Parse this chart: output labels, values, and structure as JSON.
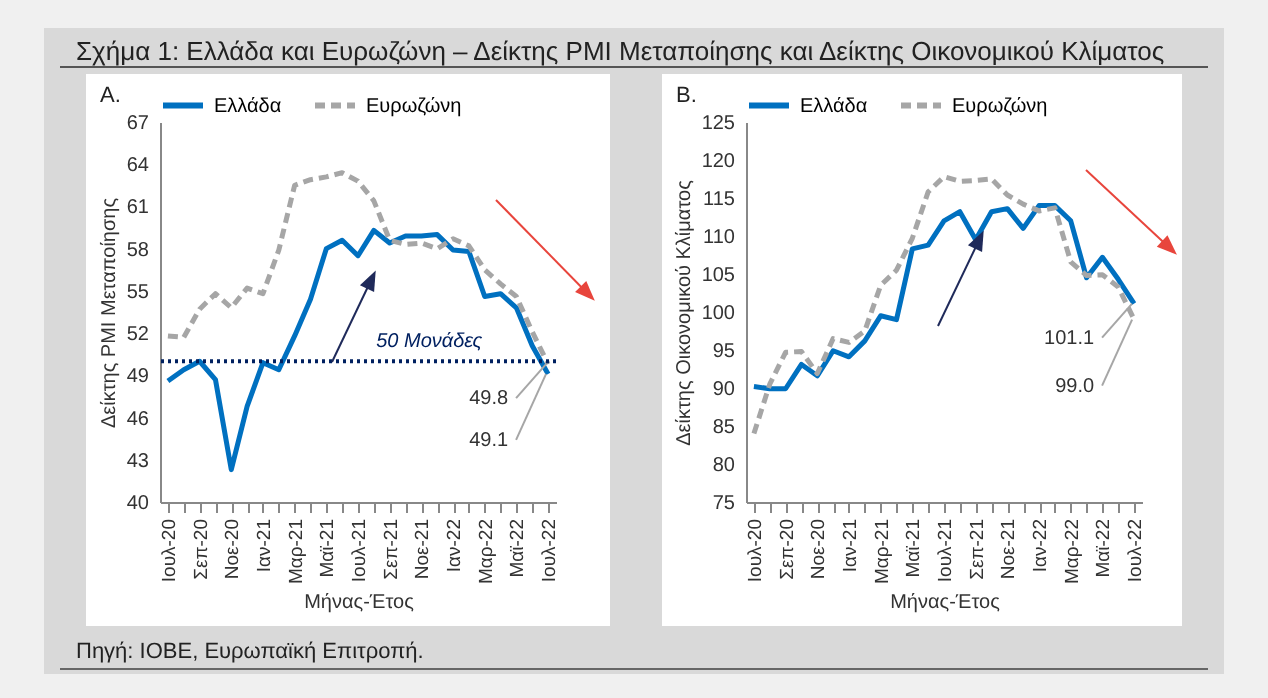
{
  "chart_data": [
    {
      "type": "line",
      "title": "Σχήμα 1: Ελλάδα και Ευρωζώνη – Δείκτης PMI Μεταποίησης και Δείκτης Οικονομικού Κλίματος",
      "subtitle": "A.",
      "xlabel": "Μήνας-Έτος",
      "ylabel": "Δείκτης PMI Μεταποίησης",
      "categories": [
        "Ιουλ-20",
        null,
        "Σεπ-20",
        null,
        "Νοε-20",
        null,
        "Ιαν-21",
        null,
        "Μαρ-21",
        null,
        "Μαϊ-21",
        null,
        "Ιουλ-21",
        null,
        "Σεπ-21",
        null,
        "Νοε-21",
        null,
        "Ιαν-22",
        null,
        "Μαρ-22",
        null,
        "Μαϊ-22",
        null,
        "Ιουλ-22"
      ],
      "series": [
        {
          "name": "Ελλάδα",
          "color": "#0070c0",
          "line_style": "solid",
          "values": [
            48.6,
            49.4,
            50.0,
            48.7,
            42.3,
            46.8,
            49.9,
            49.4,
            51.8,
            54.4,
            58.0,
            58.6,
            57.5,
            59.3,
            58.4,
            58.9,
            58.9,
            59.0,
            57.9,
            57.8,
            54.6,
            54.8,
            53.8,
            51.1,
            49.1
          ]
        },
        {
          "name": "Ευρωζώνη",
          "color": "#a6a6a6",
          "line_style": "dashed",
          "values": [
            51.8,
            51.7,
            53.7,
            54.8,
            53.8,
            55.2,
            54.8,
            57.9,
            62.5,
            62.9,
            63.1,
            63.4,
            62.8,
            61.4,
            58.6,
            58.3,
            58.4,
            58.0,
            58.7,
            58.2,
            56.5,
            55.5,
            54.6,
            52.1,
            49.8
          ]
        }
      ],
      "ylim": [
        40,
        67
      ],
      "yticks": [
        40,
        43,
        46,
        49,
        52,
        55,
        58,
        61,
        64,
        67
      ],
      "legend": "top",
      "ref_lines": [
        {
          "axis": "y",
          "value": 50,
          "label": "50 Μονάδες",
          "color": "#002060",
          "line_style": "dotted"
        }
      ],
      "annotations": [
        {
          "text": "49.8",
          "x": "Ιουλ-22",
          "y": 49.8
        },
        {
          "text": "49.1",
          "x": "Ιουλ-22",
          "y": 49.1
        }
      ]
    },
    {
      "type": "line",
      "subtitle": "B.",
      "xlabel": "Μήνας-Έτος",
      "ylabel": "Δείκτης Οικονομικού Κλίματος",
      "categories": [
        "Ιουλ-20",
        null,
        "Σεπ-20",
        null,
        "Νοε-20",
        null,
        "Ιαν-21",
        null,
        "Μαρ-21",
        null,
        "Μαϊ-21",
        null,
        "Ιουλ-21",
        null,
        "Σεπ-21",
        null,
        "Νοε-21",
        null,
        "Ιαν-22",
        null,
        "Μαρ-22",
        null,
        "Μαϊ-22",
        null,
        "Ιουλ-22"
      ],
      "series": [
        {
          "name": "Ελλάδα",
          "color": "#0070c0",
          "line_style": "solid",
          "values": [
            90.2,
            89.9,
            89.9,
            93.1,
            91.6,
            94.9,
            94.1,
            96.2,
            99.5,
            99.0,
            108.3,
            108.8,
            112.0,
            113.2,
            109.5,
            113.2,
            113.6,
            111.0,
            114.0,
            114.0,
            112.0,
            104.5,
            107.2,
            104.3,
            101.1
          ]
        },
        {
          "name": "Ευρωζώνη",
          "color": "#a6a6a6",
          "line_style": "dashed",
          "values": [
            84.0,
            90.5,
            94.7,
            94.8,
            91.9,
            96.5,
            96.0,
            97.5,
            103.5,
            105.5,
            109.7,
            115.8,
            117.8,
            117.2,
            117.3,
            117.5,
            115.4,
            114.2,
            113.3,
            113.7,
            106.6,
            104.8,
            104.9,
            103.3,
            99.0
          ]
        }
      ],
      "ylim": [
        75,
        125
      ],
      "yticks": [
        75,
        80,
        85,
        90,
        95,
        100,
        105,
        110,
        115,
        120,
        125
      ],
      "legend": "top",
      "annotations": [
        {
          "text": "101.1",
          "x": "Ιουλ-22",
          "y": 101.1
        },
        {
          "text": "99.0",
          "x": "Ιουλ-22",
          "y": 99.0
        },
        "Πηγή: ΙΟΒΕ, Ευρωπαϊκή Επιτροπή."
      ]
    }
  ]
}
